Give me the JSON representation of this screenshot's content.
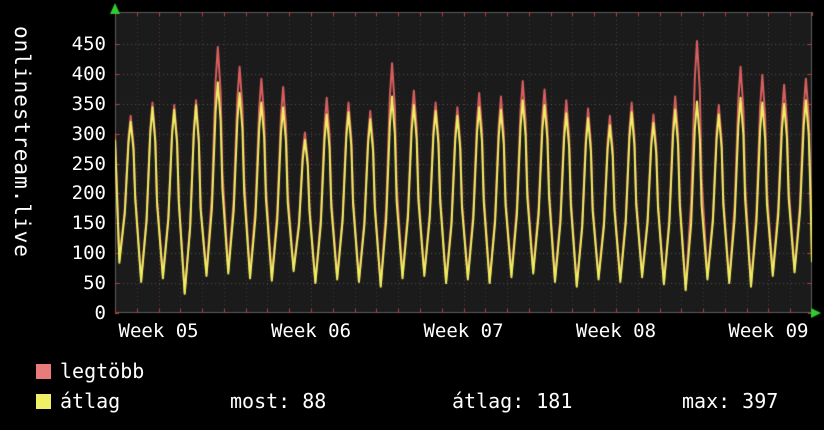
{
  "watermark": "onlinestream.live",
  "chart_data": {
    "type": "line",
    "title": "",
    "x_axis": {
      "unit": "days",
      "range": [
        0,
        32
      ],
      "tick_positions": [
        2,
        9,
        16,
        23,
        30
      ],
      "tick_labels": [
        "Week 05",
        "Week 06",
        "Week 07",
        "Week 08",
        "Week 09"
      ]
    },
    "y_axis": {
      "range": [
        0,
        500
      ],
      "ticks": [
        0,
        50,
        100,
        150,
        200,
        250,
        300,
        350,
        400,
        450
      ]
    },
    "grid": true,
    "legend_position": "bottom-left",
    "series": [
      {
        "name": "legtöbb",
        "color": "#d95f5f",
        "start_value": 300,
        "end_value": 88,
        "daily_peaks": [
          330,
          352,
          348,
          356,
          445,
          412,
          392,
          378,
          302,
          360,
          352,
          338,
          418,
          372,
          352,
          344,
          368,
          362,
          388,
          374,
          356,
          342,
          330,
          352,
          332,
          362,
          455,
          348,
          412,
          398,
          382,
          392
        ],
        "daily_troughs": [
          88,
          56,
          62,
          34,
          66,
          70,
          62,
          58,
          74,
          52,
          60,
          56,
          46,
          62,
          66,
          54,
          60,
          52,
          64,
          70,
          56,
          46,
          60,
          56,
          64,
          50,
          40,
          60,
          54,
          46,
          66,
          72
        ]
      },
      {
        "name": "átlag",
        "color": "#efef62",
        "start_value": 290,
        "end_value": 85,
        "daily_peaks": [
          320,
          344,
          340,
          348,
          386,
          368,
          352,
          344,
          290,
          332,
          336,
          324,
          362,
          348,
          338,
          330,
          344,
          340,
          356,
          348,
          334,
          326,
          314,
          336,
          318,
          340,
          354,
          332,
          360,
          352,
          350,
          356
        ],
        "daily_troughs": [
          84,
          52,
          58,
          32,
          62,
          66,
          58,
          54,
          70,
          50,
          56,
          52,
          44,
          58,
          62,
          50,
          56,
          50,
          60,
          66,
          52,
          44,
          56,
          52,
          60,
          48,
          38,
          56,
          50,
          44,
          62,
          68
        ]
      }
    ],
    "stats": {
      "most": 88,
      "atlag": 181,
      "max": 397
    }
  },
  "legend": {
    "items": [
      {
        "label": "legtöbb",
        "color": "#e87b7b"
      },
      {
        "label": "átlag",
        "color": "#f0f066"
      }
    ],
    "stats": [
      {
        "label": "most:",
        "value": "88"
      },
      {
        "label": "átlag:",
        "value": "181"
      },
      {
        "label": "max:",
        "value": "397"
      }
    ]
  }
}
